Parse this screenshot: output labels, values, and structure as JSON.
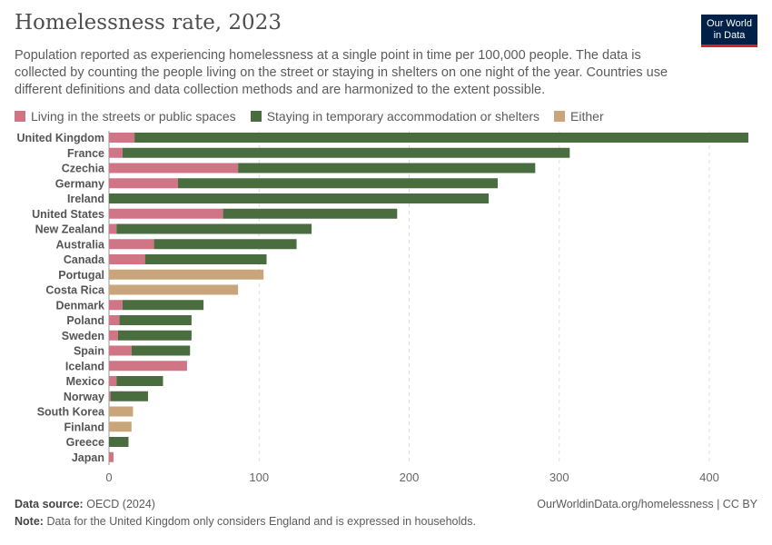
{
  "title": "Homelessness rate, 2023",
  "subtitle": "Population reported as experiencing homelessness at a single point in time per 100,000 people. The data is collected by counting the people living on the street or staying in shelters on one night of the year. Countries use different definitions and data collection methods and are harmonized to the extent possible.",
  "logo": {
    "line1": "Our World",
    "line2": "in Data"
  },
  "footer": {
    "source_label": "Data source:",
    "source": "OECD (2024)",
    "url": "OurWorldinData.org/homelessness | CC BY",
    "note_label": "Note:",
    "note": "Data for the United Kingdom only considers England and is expressed in households."
  },
  "chart_data": {
    "type": "bar",
    "orientation": "horizontal",
    "stacked": true,
    "title": "Homelessness rate, 2023",
    "xlim": [
      0,
      430
    ],
    "xticks": [
      "0",
      "100",
      "200",
      "300",
      "400"
    ],
    "grid": true,
    "legend_position": "top",
    "categories": [
      "United Kingdom",
      "France",
      "Czechia",
      "Germany",
      "Ireland",
      "United States",
      "New Zealand",
      "Australia",
      "Canada",
      "Portugal",
      "Costa Rica",
      "Denmark",
      "Poland",
      "Sweden",
      "Spain",
      "Iceland",
      "Mexico",
      "Norway",
      "South Korea",
      "Finland",
      "Greece",
      "Japan"
    ],
    "series": [
      {
        "name": "Living in the streets or public spaces",
        "color": "#cf7585",
        "values": [
          17,
          9,
          86,
          46,
          0,
          76,
          5,
          30,
          24,
          0,
          0,
          9,
          7,
          6,
          15,
          52,
          5,
          1,
          0,
          0,
          0,
          3
        ]
      },
      {
        "name": "Staying in temporary accommodation or shelters",
        "color": "#4a6d40",
        "values": [
          409,
          298,
          198,
          213,
          253,
          116,
          130,
          95,
          81,
          0,
          0,
          54,
          48,
          49,
          39,
          0,
          31,
          25,
          0,
          0,
          13,
          0
        ]
      },
      {
        "name": "Either",
        "color": "#c8a57a",
        "values": [
          0,
          0,
          0,
          0,
          0,
          0,
          0,
          0,
          0,
          103,
          86,
          0,
          0,
          0,
          0,
          0,
          0,
          0,
          16,
          15,
          0,
          0
        ]
      }
    ]
  }
}
